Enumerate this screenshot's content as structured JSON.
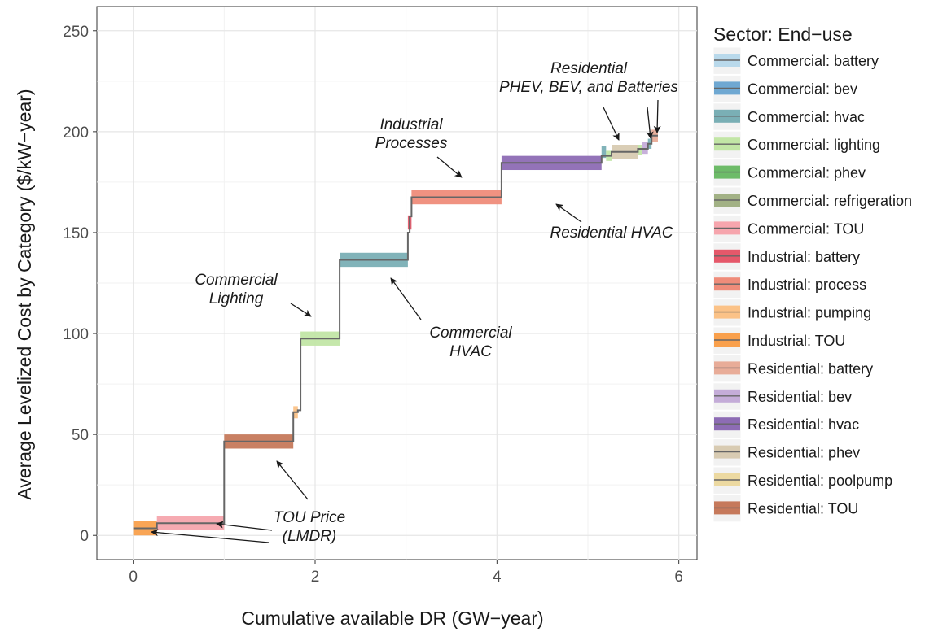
{
  "chart_data": {
    "type": "step",
    "xlabel": "Cumulative available DR (GW−year)",
    "ylabel": "Average Levelized Cost by Category ($/kW−year)",
    "xlim": [
      -0.4,
      6.2
    ],
    "ylim": [
      -12,
      262
    ],
    "x_ticks": [
      0,
      2,
      4,
      6
    ],
    "y_ticks": [
      0,
      50,
      100,
      150,
      200,
      250
    ],
    "grid": true,
    "legend_title": "Sector: End−use",
    "legend_position": "right",
    "legend": [
      {
        "label": "Commercial: battery",
        "color": "#b9d9eb"
      },
      {
        "label": "Commercial: bev",
        "color": "#6fa8d2"
      },
      {
        "label": "Commercial: hvac",
        "color": "#7aafb5"
      },
      {
        "label": "Commercial: lighting",
        "color": "#c2e6a6"
      },
      {
        "label": "Commercial: phev",
        "color": "#6dbb68"
      },
      {
        "label": "Commercial: refrigeration",
        "color": "#a2b185"
      },
      {
        "label": "Commercial: TOU",
        "color": "#f6a5ad"
      },
      {
        "label": "Industrial: battery",
        "color": "#e5586a"
      },
      {
        "label": "Industrial: process",
        "color": "#ef8c7a"
      },
      {
        "label": "Industrial: pumping",
        "color": "#fbc287"
      },
      {
        "label": "Industrial: TOU",
        "color": "#f9a04c"
      },
      {
        "label": "Residential: battery",
        "color": "#e8ac98"
      },
      {
        "label": "Residential: bev",
        "color": "#c4acd8"
      },
      {
        "label": "Residential: hvac",
        "color": "#8d6cb4"
      },
      {
        "label": "Residential: phev",
        "color": "#d8cbb2"
      },
      {
        "label": "Residential: poolpump",
        "color": "#ecd9a1"
      },
      {
        "label": "Residential: TOU",
        "color": "#c6795b"
      }
    ],
    "segments": [
      {
        "category": "Industrial: TOU",
        "x0": 0.0,
        "x1": 0.26,
        "y": 3.5,
        "band": 3.5
      },
      {
        "category": "Commercial: TOU",
        "x0": 0.26,
        "x1": 1.0,
        "y": 6.0,
        "band": 3.5
      },
      {
        "category": "Residential: TOU",
        "x0": 1.0,
        "x1": 1.76,
        "y": 46.5,
        "band": 3.5
      },
      {
        "category": "Industrial: pumping",
        "x0": 1.76,
        "x1": 1.81,
        "y": 61.0,
        "band": 3.0
      },
      {
        "category": "Commercial: lighting",
        "x0": 1.84,
        "x1": 2.27,
        "y": 97.5,
        "band": 3.5
      },
      {
        "category": "Commercial: hvac",
        "x0": 2.27,
        "x1": 3.02,
        "y": 136.5,
        "band": 3.5
      },
      {
        "category": "Industrial: battery",
        "x0": 3.02,
        "x1": 3.06,
        "y": 155.0,
        "band": 3.5
      },
      {
        "category": "Industrial: process",
        "x0": 3.06,
        "x1": 4.05,
        "y": 167.5,
        "band": 3.5
      },
      {
        "category": "Residential: hvac",
        "x0": 4.05,
        "x1": 5.15,
        "y": 184.5,
        "band": 3.5
      },
      {
        "category": "Commercial: hvac",
        "x0": 5.15,
        "x1": 5.2,
        "y": 190.0,
        "band": 3.0
      },
      {
        "category": "Commercial: lighting",
        "x0": 5.2,
        "x1": 5.26,
        "y": 188.0,
        "band": 2.5
      },
      {
        "category": "Residential: phev",
        "x0": 5.26,
        "x1": 5.55,
        "y": 190.0,
        "band": 3.5
      },
      {
        "category": "Commercial: lighting",
        "x0": 5.55,
        "x1": 5.6,
        "y": 191.0,
        "band": 2.5
      },
      {
        "category": "Residential: bev",
        "x0": 5.6,
        "x1": 5.66,
        "y": 192.0,
        "band": 3.0
      },
      {
        "category": "Commercial: hvac",
        "x0": 5.66,
        "x1": 5.7,
        "y": 194.0,
        "band": 2.5
      },
      {
        "category": "Residential: battery",
        "x0": 5.7,
        "x1": 5.77,
        "y": 198.0,
        "band": 3.0
      }
    ],
    "step_line": [
      [
        0.0,
        3.5
      ],
      [
        0.26,
        3.5
      ],
      [
        0.26,
        6.0
      ],
      [
        1.0,
        6.0
      ],
      [
        1.0,
        46.5
      ],
      [
        1.76,
        46.5
      ],
      [
        1.76,
        61.0
      ],
      [
        1.81,
        61.0
      ],
      [
        1.81,
        62.0
      ],
      [
        1.84,
        62.0
      ],
      [
        1.84,
        97.5
      ],
      [
        2.27,
        97.5
      ],
      [
        2.27,
        136.5
      ],
      [
        3.02,
        136.5
      ],
      [
        3.02,
        150.0
      ],
      [
        3.04,
        150.0
      ],
      [
        3.04,
        158.0
      ],
      [
        3.06,
        158.0
      ],
      [
        3.06,
        167.5
      ],
      [
        4.05,
        167.5
      ],
      [
        4.05,
        184.5
      ],
      [
        5.15,
        184.5
      ],
      [
        5.15,
        188.0
      ],
      [
        5.26,
        188.0
      ],
      [
        5.26,
        190.0
      ],
      [
        5.55,
        190.0
      ],
      [
        5.55,
        191.5
      ],
      [
        5.66,
        191.5
      ],
      [
        5.66,
        194.0
      ],
      [
        5.7,
        194.0
      ],
      [
        5.7,
        198.0
      ],
      [
        5.77,
        198.0
      ]
    ],
    "annotations": [
      {
        "lines": [
          "Residential",
          "PHEV, BEV, and Batteries"
        ]
      },
      {
        "lines": [
          "Industrial",
          "Processes"
        ]
      },
      {
        "lines": [
          "Residential HVAC"
        ]
      },
      {
        "lines": [
          "Commercial",
          "Lighting"
        ]
      },
      {
        "lines": [
          "Commercial",
          "HVAC"
        ]
      },
      {
        "lines": [
          "TOU Price",
          "(LMDR)"
        ]
      }
    ]
  }
}
